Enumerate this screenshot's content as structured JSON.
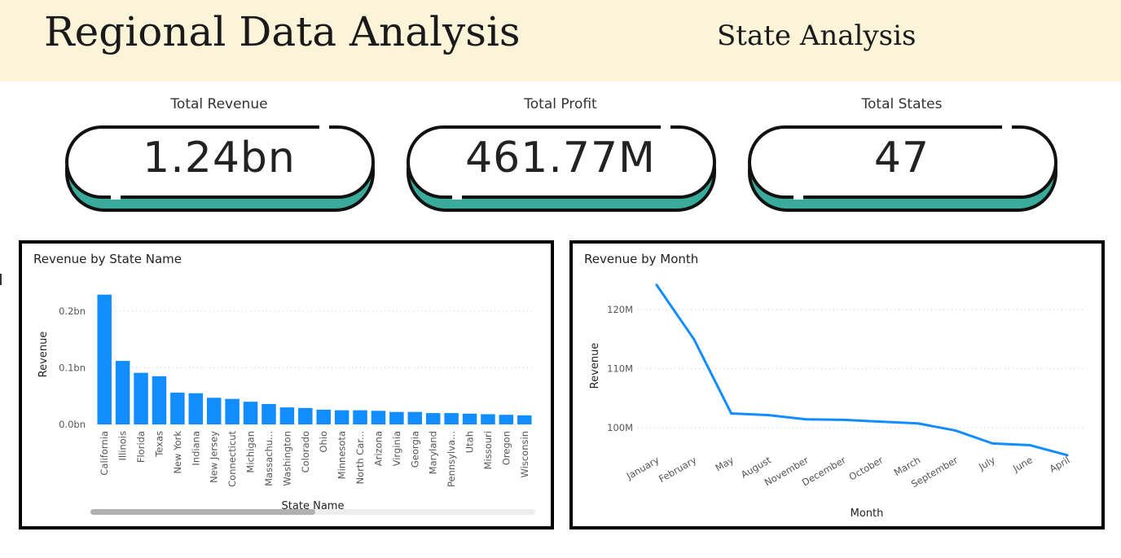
{
  "header": {
    "title": "Regional Data Analysis",
    "subtitle": "State Analysis"
  },
  "colors": {
    "accent": "#118DFF",
    "kpi_shadow": "#3aab9a",
    "header_bg": "#fbf4d8"
  },
  "kpis": [
    {
      "label": "Total Revenue",
      "value": "1.24bn"
    },
    {
      "label": "Total Profit",
      "value": "461.77M"
    },
    {
      "label": "Total States",
      "value": "47"
    }
  ],
  "chart_data": [
    {
      "type": "bar",
      "title": "Revenue by State Name",
      "xlabel": "State Name",
      "ylabel": "Revenue",
      "ylim": [
        0,
        0.24
      ],
      "y_ticks": [
        0,
        0.1,
        0.2
      ],
      "y_tick_labels": [
        "0.0bn",
        "0.1bn",
        "0.2bn"
      ],
      "grid": true,
      "unit": "bn",
      "categories": [
        "California",
        "Illinois",
        "Florida",
        "Texas",
        "New York",
        "Indiana",
        "New Jersey",
        "Connecticut",
        "Michigan",
        "Massachu...",
        "Washington",
        "Colorado",
        "Ohio",
        "Minnesota",
        "North Car...",
        "Arizona",
        "Virginia",
        "Georgia",
        "Maryland",
        "Pennsylva...",
        "Utah",
        "Missouri",
        "Oregon",
        "Wisconsin"
      ],
      "values": [
        0.229,
        0.112,
        0.091,
        0.085,
        0.056,
        0.055,
        0.047,
        0.045,
        0.04,
        0.036,
        0.03,
        0.029,
        0.026,
        0.025,
        0.025,
        0.024,
        0.022,
        0.022,
        0.02,
        0.02,
        0.019,
        0.018,
        0.017,
        0.016
      ]
    },
    {
      "type": "line",
      "title": "Revenue by Month",
      "xlabel": "Month",
      "ylabel": "Revenue",
      "ylim": [
        95,
        125
      ],
      "y_ticks": [
        100,
        110,
        120
      ],
      "y_tick_labels": [
        "100M",
        "110M",
        "120M"
      ],
      "grid": true,
      "unit": "M",
      "categories": [
        "January",
        "February",
        "May",
        "August",
        "November",
        "December",
        "October",
        "March",
        "September",
        "July",
        "June",
        "April"
      ],
      "values": [
        124.2,
        115.0,
        102.4,
        102.1,
        101.4,
        101.3,
        101.0,
        100.7,
        99.5,
        97.3,
        97.0,
        95.3
      ]
    }
  ]
}
